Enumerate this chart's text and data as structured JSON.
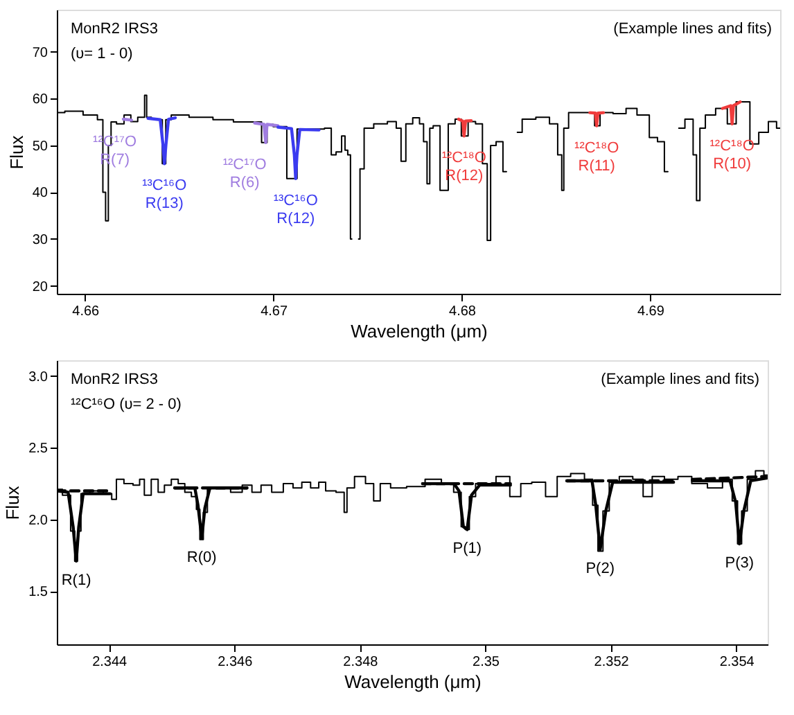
{
  "chart_data": [
    {
      "type": "line",
      "xlabel": "Wavelength (μm)",
      "ylabel": "Flux",
      "subtitle": "(Example lines and fits)",
      "annotations": [
        "MonR2 IRS3",
        "(υ= 1 - 0)"
      ],
      "xlim": [
        4.6585,
        4.6969
      ],
      "ylim": [
        18.3,
        79
      ],
      "xticks": [
        4.66,
        4.67,
        4.68,
        4.69
      ],
      "yticks": [
        20,
        30,
        40,
        50,
        60,
        70
      ],
      "grid": false,
      "series": [
        {
          "type": "step",
          "color": "#000000",
          "x": [
            4.6585,
            4.65935,
            4.66044,
            4.66087,
            4.66102,
            4.66116,
            4.66131,
            4.66145,
            4.66189,
            4.66225,
            4.66261,
            4.66298,
            4.66312,
            4.6632,
            4.66334,
            4.6637,
            4.66399,
            4.66421,
            4.66436,
            4.66479,
            4.66625,
            4.66733,
            4.66842,
            4.66915,
            4.66959,
            4.66973,
            4.67024,
            4.67118,
            4.67133,
            4.67242,
            4.673,
            4.67314,
            4.67351,
            4.67373,
            4.67387,
            4.67402,
            4.67416,
            4.67423,
            4.67438,
            4.67452,
            4.67467,
            4.67496,
            4.67569,
            4.67641,
            4.67663,
            4.67692,
            4.67714,
            4.67765,
            4.67786,
            4.67808,
            4.67823,
            4.67837,
            4.67859,
            4.6791,
            4.67946,
            4.67983,
            4.68012,
            4.68055,
            4.68091,
            4.68128,
            4.68142,
            4.68164,
            4.682,
            4.68237,
            4.68258,
            4.68273,
            4.68295,
            4.68346,
            4.6844,
            4.68491,
            4.68527,
            4.68534,
            4.68549,
            4.68585,
            4.68636,
            4.68694,
            4.68716,
            4.68752,
            4.68854,
            4.6889,
            4.6897,
            4.69021,
            4.69057,
            4.69094,
            4.69115,
            4.6913,
            4.69152,
            4.69217,
            4.69239,
            4.69253,
            4.69275,
            4.69311,
            4.69384,
            4.69435,
            4.69478,
            4.69508,
            4.69551,
            4.69602,
            4.69653,
            4.69689
          ],
          "values": [
            57.0,
            57.3,
            56.5,
            55.5,
            40.0,
            33.9,
            50.0,
            55.0,
            54.6,
            56.5,
            55.1,
            56.0,
            56.0,
            60.7,
            56.0,
            55.7,
            55.5,
            46.1,
            55.5,
            56.5,
            56.0,
            55.5,
            55.0,
            55.0,
            50.6,
            54.5,
            54.0,
            42.9,
            53.5,
            53.5,
            53.7,
            48.0,
            48.6,
            52.0,
            49.0,
            48.0,
            30.0,
            null,
            null,
            30.0,
            45.0,
            53.7,
            54.6,
            55.1,
            53.7,
            46.6,
            54.6,
            55.9,
            54.6,
            50.8,
            41.8,
            53.7,
            54.2,
            40.4,
            54.6,
            55.6,
            52.0,
            55.1,
            54.6,
            46.1,
            29.7,
            50.0,
            50.8,
            44.4,
            null,
            null,
            52.8,
            55.6,
            56.0,
            54.6,
            48.0,
            40.4,
            53.7,
            57.0,
            57.0,
            57.0,
            54.2,
            57.0,
            56.8,
            57.9,
            56.5,
            51.7,
            50.8,
            44.4,
            null,
            null,
            53.7,
            55.6,
            48.0,
            38.2,
            53.7,
            56.5,
            57.9,
            54.6,
            59.3,
            59.3,
            50.3,
            52.8,
            55.1,
            53.7
          ]
        },
        {
          "type": "line",
          "name": "¹²C¹⁷O R(7)",
          "color": "#a07de0",
          "line_style": "dashed",
          "x": [
            4.66203,
            4.66247
          ],
          "values": [
            55.6,
            55.4
          ]
        },
        {
          "type": "line",
          "name": "¹³C¹⁶O R(13)",
          "color": "#3b3bf0",
          "x": [
            4.66334,
            4.66399,
            4.66414,
            4.66421,
            4.66429,
            4.66443,
            4.66479
          ],
          "values": [
            55.8,
            55.5,
            50.0,
            46.1,
            50.0,
            55.6,
            55.9
          ]
        },
        {
          "type": "line",
          "name": "¹²C¹⁷O R(6)",
          "color": "#a07de0",
          "x": [
            4.669,
            4.6695,
            4.66959,
            4.66966,
            4.67024
          ],
          "values": [
            54.8,
            54.5,
            50.6,
            54.5,
            54.2
          ]
        },
        {
          "type": "line",
          "name": "¹³C¹⁶O R(12)",
          "color": "#3b3bf0",
          "x": [
            4.67024,
            4.67096,
            4.67111,
            4.67118,
            4.67125,
            4.6714,
            4.67242
          ],
          "values": [
            53.9,
            53.6,
            48.0,
            42.9,
            48.0,
            53.4,
            53.3
          ]
        },
        {
          "type": "line",
          "name": "¹²C¹⁸O R(12)",
          "color": "#f03c3c",
          "x": [
            4.67983,
            4.68005,
            4.68012,
            4.6802,
            4.6805
          ],
          "values": [
            55.6,
            55.2,
            52.0,
            55.2,
            55.3
          ]
        },
        {
          "type": "line",
          "name": "¹²C¹⁸O R(11)",
          "color": "#f03c3c",
          "x": [
            4.6868,
            4.68709,
            4.68716,
            4.68723,
            4.68752
          ],
          "values": [
            57.0,
            56.9,
            54.2,
            56.9,
            57.0
          ]
        },
        {
          "type": "line",
          "name": "¹²C¹⁸O R(10)",
          "color": "#f03c3c",
          "x": [
            4.69384,
            4.69428,
            4.69435,
            4.69442,
            4.69478
          ],
          "values": [
            57.9,
            58.5,
            54.6,
            58.5,
            59.3
          ]
        }
      ]
    },
    {
      "type": "line",
      "xlabel": "Wavelength (μm)",
      "ylabel": "Flux",
      "subtitle": "(Example lines and fits)",
      "annotations": [
        "MonR2 IRS3",
        "¹²C¹⁶O   (υ= 2 - 0)",
        {
          "text": "R(1)",
          "x": 2.34348,
          "y": 1.71
        },
        {
          "text": "R(0)",
          "x": 2.34548,
          "y": 1.87
        },
        {
          "text": "P(1)",
          "x": 2.34971,
          "y": 1.93
        },
        {
          "text": "P(2)",
          "x": 2.35183,
          "y": 1.79
        },
        {
          "text": "P(3)",
          "x": 2.35405,
          "y": 1.83
        }
      ],
      "xlim": [
        2.34317,
        2.3545
      ],
      "ylim": [
        1.13,
        3.11
      ],
      "xticks": [
        2.344,
        2.346,
        2.348,
        2.35,
        2.352,
        2.354
      ],
      "yticks": [
        1.5,
        {
          "value": 2,
          "label": "2.0"
        },
        {
          "value": 2.5,
          "label": "2.5"
        },
        {
          "value": 3,
          "label": "3.0"
        }
      ],
      "grid": false,
      "series": [
        {
          "type": "step",
          "color": "#000000",
          "x": [
            2.34317,
            2.34335,
            2.34343,
            2.34348,
            2.34352,
            2.34359,
            2.3438,
            2.34402,
            2.34407,
            2.34417,
            2.34431,
            2.34446,
            2.34452,
            2.34461,
            2.34474,
            2.34483,
            2.34494,
            2.34505,
            2.34516,
            2.34526,
            2.34537,
            2.34542,
            2.34548,
            2.34553,
            2.34561,
            2.34583,
            2.34605,
            2.3462,
            2.34636,
            2.34649,
            2.3467,
            2.34686,
            2.34701,
            2.34714,
            2.34729,
            2.3474,
            2.34751,
            2.34773,
            2.34777,
            2.34782,
            2.34801,
            2.34817,
            2.34827,
            2.34838,
            2.3486,
            2.34889,
            2.34919,
            2.34941,
            2.34958,
            2.34965,
            2.34971,
            2.34978,
            2.34991,
            2.35006,
            2.35028,
            2.3505,
            2.35063,
            2.35085,
            2.35107,
            2.35122,
            2.3515,
            2.35166,
            2.35176,
            2.35183,
            2.35192,
            2.35203,
            2.35224,
            2.35246,
            2.35257,
            2.35275,
            2.35296,
            2.35318,
            2.3534,
            2.35368,
            2.35388,
            2.35399,
            2.35405,
            2.35412,
            2.35423,
            2.35438,
            2.3545
          ],
          "values": [
            2.21,
            2.17,
            1.92,
            1.71,
            1.92,
            2.18,
            2.2,
            2.18,
            2.14,
            2.28,
            2.25,
            2.24,
            2.28,
            2.17,
            2.28,
            2.19,
            2.24,
            2.28,
            2.25,
            2.19,
            2.16,
            2.07,
            1.86,
            2.05,
            2.22,
            2.22,
            2.19,
            2.24,
            2.19,
            2.24,
            2.19,
            2.25,
            2.22,
            2.26,
            2.22,
            2.26,
            2.2,
            2.19,
            2.05,
            2.22,
            2.3,
            2.25,
            2.13,
            2.25,
            2.22,
            2.23,
            2.28,
            2.25,
            2.19,
            1.95,
            1.93,
            2.16,
            2.25,
            2.25,
            2.3,
            2.16,
            2.25,
            2.26,
            2.16,
            2.3,
            2.32,
            2.28,
            2.1,
            1.78,
            2.06,
            2.26,
            2.3,
            2.28,
            2.16,
            2.3,
            2.28,
            2.3,
            2.25,
            2.22,
            2.28,
            2.13,
            1.83,
            2.06,
            2.28,
            2.34,
            2.31
          ]
        },
        {
          "type": "line",
          "color": "#000000",
          "line_style": "dashed",
          "x": [
            2.34317,
            2.34402,
            null,
            2.34505,
            2.3462,
            null,
            2.349,
            2.3504,
            null,
            2.3513,
            2.353,
            null,
            2.3533,
            2.3545
          ],
          "values": [
            2.2,
            2.2,
            null,
            2.22,
            2.22,
            null,
            2.25,
            2.25,
            null,
            2.27,
            2.27,
            null,
            2.28,
            2.3
          ]
        },
        {
          "type": "line",
          "color": "#000000",
          "x": [
            2.34317,
            2.34335,
            2.34343,
            2.34348,
            2.34352,
            2.34359,
            2.34402,
            null,
            2.34505,
            2.34537,
            2.34542,
            2.34548,
            2.34553,
            2.34561,
            2.3462,
            null,
            2.349,
            2.3495,
            2.34958,
            2.34965,
            2.34971,
            2.34978,
            2.34991,
            2.3504,
            null,
            2.3513,
            2.3517,
            2.35176,
            2.35183,
            2.35192,
            2.35203,
            2.353,
            null,
            2.3533,
            2.3539,
            2.35399,
            2.35405,
            2.35412,
            2.35423,
            2.3545
          ],
          "values": [
            2.2,
            2.19,
            1.95,
            1.71,
            1.95,
            2.18,
            2.18,
            null,
            2.22,
            2.22,
            2.1,
            1.87,
            2.08,
            2.22,
            2.22,
            null,
            2.25,
            2.25,
            2.2,
            1.95,
            1.93,
            2.17,
            2.24,
            2.24,
            null,
            2.27,
            2.27,
            2.1,
            1.79,
            2.06,
            2.26,
            2.26,
            null,
            2.27,
            2.27,
            2.12,
            1.83,
            2.06,
            2.27,
            2.29
          ]
        }
      ]
    }
  ]
}
